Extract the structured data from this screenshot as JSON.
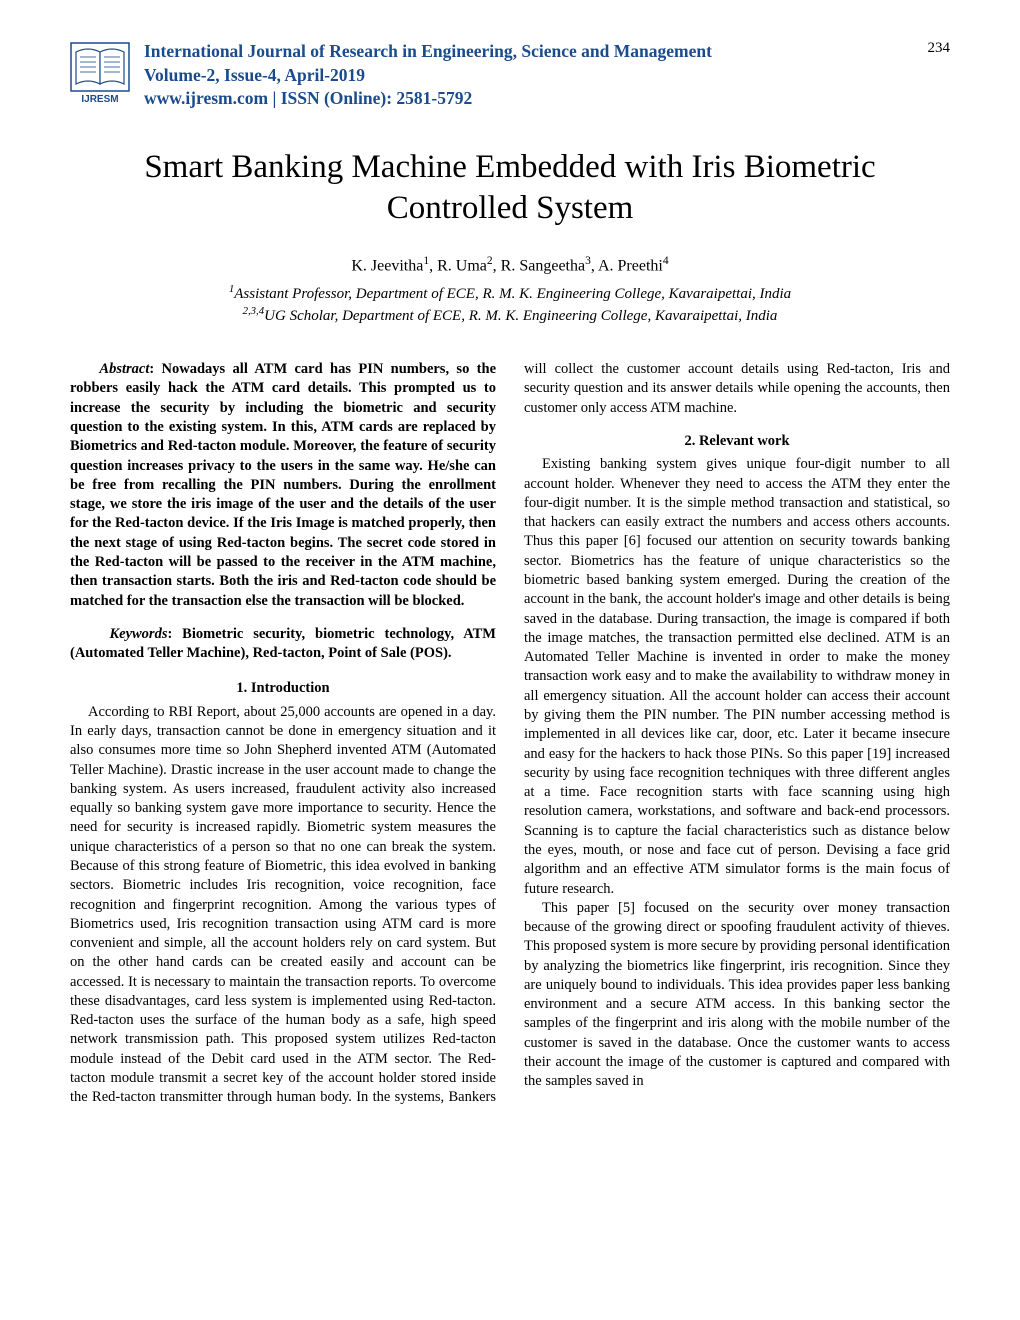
{
  "header": {
    "journal_name": "International Journal of Research in Engineering, Science and Management",
    "issue": "Volume-2, Issue-4, April-2019",
    "url_issn": "www.ijresm.com | ISSN (Online): 2581-5792",
    "page_number": "234",
    "logo_label": "IJRESM"
  },
  "title": "Smart Banking Machine Embedded with Iris Biometric Controlled System",
  "authors_html": "K. Jeevitha<sup>1</sup>, R. Uma<sup>2</sup>, R. Sangeetha<sup>3</sup>, A. Preethi<sup>4</sup>",
  "affiliations": {
    "line1_html": "<sup>1</sup>Assistant Professor, Department of ECE, R. M. K. Engineering College, Kavaraipettai, India",
    "line2_html": "<sup>2,3,4</sup>UG Scholar, Department of ECE, R. M. K. Engineering College, Kavaraipettai, India"
  },
  "abstract": {
    "label": "Abstract",
    "text": ": Nowadays all ATM card has PIN numbers, so the robbers easily hack the ATM card details. This prompted us to increase the security by including the biometric and security question to the existing system. In this, ATM cards are replaced by Biometrics and Red-tacton module. Moreover, the feature of security question increases privacy to the users in the same way. He/she can be free from recalling the PIN numbers. During the enrollment stage, we store the iris image of the user and the details of the user for the Red-tacton device. If the Iris Image is matched properly, then the next stage of using Red-tacton begins. The secret code stored in the Red-tacton will be passed to the receiver in the ATM machine, then transaction starts. Both the iris and Red-tacton code should be matched for the transaction else the transaction will be blocked."
  },
  "keywords": {
    "label": "Keywords",
    "text": ": Biometric security, biometric technology, ATM (Automated Teller Machine), Red-tacton, Point of Sale (POS)."
  },
  "sections": {
    "intro": {
      "heading": "1. Introduction",
      "para1": "According to RBI Report, about 25,000 accounts are opened in a day. In early days, transaction cannot be done in emergency situation and it also consumes more time so John Shepherd invented ATM (Automated Teller Machine). Drastic increase in the user account made to change the banking system. As users increased, fraudulent activity also increased equally so banking system gave more importance to security. Hence the need for security is increased rapidly. Biometric system measures the unique characteristics of a person so that no one can break the system. Because of this strong feature of Biometric, this idea evolved in banking sectors. Biometric includes Iris recognition, voice recognition, face recognition and fingerprint recognition. Among the various types of Biometrics used, Iris recognition transaction using ATM card is more convenient and simple, all the account holders rely on card system. But on the other hand cards can be created easily and account can be accessed. It is necessary to maintain the transaction reports. To overcome these disadvantages, card less system is implemented using Red-tacton. Red-tacton uses the surface of the human body as a safe, high speed network transmission path. This proposed system utilizes Red-tacton module instead of the Debit card used in the ATM sector. The Red- tacton module transmit a secret key of the account holder stored inside the Red-tacton transmitter through human body. In the systems, Bankers will collect the customer account details using Red-tacton, Iris and security question and its answer details while opening the accounts, then customer only access ATM machine."
    },
    "relevant": {
      "heading": "2. Relevant work",
      "para1": "Existing banking system gives unique four-digit number to all account holder. Whenever they need to access the ATM they enter the four-digit number. It is the simple method transaction and statistical, so that hackers can easily extract the numbers and access others accounts. Thus this paper [6] focused our attention on security towards banking sector. Biometrics has the feature of unique characteristics so the biometric based banking system emerged. During the creation of the account in the bank, the account holder's image and other details is being saved in the database. During transaction, the image is compared if both the image matches, the transaction permitted else declined. ATM is an Automated Teller Machine  is invented in order to make the money transaction work easy and to make the availability to withdraw money in all emergency situation. All the account holder can access their account by giving them the PIN number. The PIN number accessing method is implemented in all devices like car, door, etc. Later it became insecure and easy for the hackers to hack those PINs. So this paper [19] increased security by using face recognition techniques with three different angles at a time. Face recognition starts with face scanning using high resolution camera, workstations, and software and back-end processors. Scanning is to capture the facial characteristics such as distance below the eyes, mouth, or nose and face cut of person. Devising a face grid algorithm and an effective ATM simulator forms is the main focus of future research.",
      "para2": "This paper [5] focused on the security over money transaction because of the growing direct or spoofing fraudulent activity of thieves. This proposed system is more secure by providing personal identification by analyzing the biometrics like fingerprint, iris recognition. Since they are uniquely bound to individuals. This idea provides paper less banking environment and a secure ATM access. In this banking sector the samples of the fingerprint and iris along with the mobile number of the customer is saved in the database. Once the customer wants to access their account the image of the customer is captured and compared with the samples saved in"
    }
  },
  "colors": {
    "header_text": "#1a4b8c",
    "body_text": "#000000",
    "background": "#ffffff",
    "logo_stroke": "#1a4b8c"
  },
  "fonts": {
    "body": "Times New Roman",
    "title_size_pt": 24,
    "body_size_pt": 11,
    "header_size_pt": 13
  }
}
